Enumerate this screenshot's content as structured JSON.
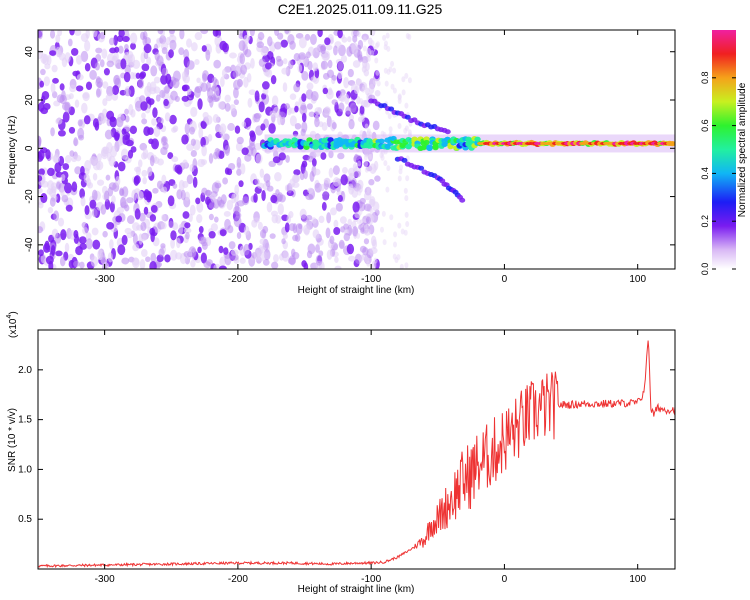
{
  "title": "C2E1.2025.011.09.11.G25",
  "chart_data": [
    {
      "type": "heatmap",
      "xlabel": "Height of straight line (km)",
      "ylabel": "Frequency (Hz)",
      "xlim": [
        -350,
        128
      ],
      "ylim": [
        -50,
        49
      ],
      "x_ticks": [
        -300,
        -200,
        -100,
        0,
        100
      ],
      "x_tick_labels": [
        "-300",
        "-200",
        "-100",
        "0",
        "100"
      ],
      "y_ticks": [
        -40,
        -20,
        0,
        20,
        40
      ],
      "y_tick_labels": [
        "-40",
        "-20",
        "0",
        "20",
        "40"
      ],
      "colorbar": {
        "label": "Normalized spectral amplitude",
        "range": [
          0,
          1
        ],
        "ticks": [
          0.0,
          0.2,
          0.4,
          0.6,
          0.8
        ],
        "tick_labels": [
          "0.0",
          "0.2",
          "0.4",
          "0.6",
          "0.8"
        ],
        "colormap": [
          "#ffffff",
          "#d9b8f5",
          "#7a1cf0",
          "#1d1df5",
          "#10b6f5",
          "#22f0a0",
          "#2ef22e",
          "#c8f020",
          "#f5a21a",
          "#f02020",
          "#f020a0"
        ]
      },
      "features": [
        {
          "name": "scattered low-amplitude noise",
          "x_range": [
            -350,
            -95
          ],
          "freq_range": [
            -50,
            49
          ],
          "amplitude": 0.1
        },
        {
          "name": "signal near 0 Hz",
          "x_range": [
            -180,
            128
          ],
          "freq_center": 2,
          "amplitude": 0.95
        },
        {
          "name": "upper branch",
          "x": [
            -100,
            -85,
            -70,
            -55,
            -40
          ],
          "freq": [
            20,
            16,
            12,
            9,
            6
          ]
        },
        {
          "name": "lower branch",
          "x": [
            -80,
            -65,
            -50,
            -40,
            -30
          ],
          "freq": [
            -4,
            -8,
            -12,
            -17,
            -22
          ]
        }
      ],
      "grid": false,
      "legend": "colorbar-right"
    },
    {
      "type": "line",
      "xlabel": "Height of straight line (km)",
      "ylabel": "SNR (10 * v/v)",
      "y_multiplier_label": "(x10",
      "y_multiplier_exp": "4",
      "xlim": [
        -350,
        128
      ],
      "ylim": [
        0,
        2.4
      ],
      "x_ticks": [
        -300,
        -200,
        -100,
        0,
        100
      ],
      "x_tick_labels": [
        "-300",
        "-200",
        "-100",
        "0",
        "100"
      ],
      "y_ticks": [
        0.5,
        1.0,
        1.5,
        2.0
      ],
      "y_tick_labels": [
        "0.5",
        "1.0",
        "1.5",
        "2.0"
      ],
      "series": [
        {
          "color": "#ee3333",
          "x": [
            -350,
            -300,
            -250,
            -200,
            -160,
            -130,
            -110,
            -100,
            -90,
            -80,
            -70,
            -60,
            -55,
            -50,
            -45,
            -40,
            -35,
            -30,
            -25,
            -20,
            -15,
            -10,
            -5,
            0,
            5,
            10,
            15,
            20,
            25,
            30,
            40,
            50,
            60,
            80,
            100,
            104,
            106,
            108,
            110,
            112,
            115,
            120,
            128
          ],
          "values": [
            0.03,
            0.04,
            0.05,
            0.06,
            0.06,
            0.05,
            0.06,
            0.06,
            0.07,
            0.12,
            0.2,
            0.3,
            0.45,
            0.5,
            0.6,
            0.7,
            0.8,
            0.9,
            0.95,
            1.05,
            1.1,
            1.15,
            1.22,
            1.3,
            1.35,
            1.42,
            1.5,
            1.55,
            1.6,
            1.63,
            1.65,
            1.65,
            1.66,
            1.66,
            1.67,
            1.75,
            1.95,
            2.35,
            1.6,
            1.55,
            1.62,
            1.6,
            1.6
          ]
        }
      ],
      "grid": false
    }
  ]
}
